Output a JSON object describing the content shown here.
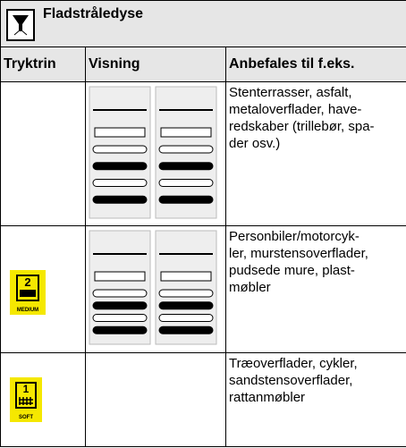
{
  "header": {
    "title": "Fladstråledyse"
  },
  "table": {
    "columns": [
      "Tryktrin",
      "Visning",
      "Anbefales til f.eks."
    ],
    "rows": [
      {
        "recommended": "Stenterrasser, asfalt,\nmetaloverflader, have-\nredskaber (trillebør, spa-\nder osv.)"
      },
      {
        "level": "2",
        "level_label": "MEDIUM",
        "recommended": "Personbiler/motorcyk-\nler, murstensoverflader,\npudsede mure, plast-\nmøbler"
      },
      {
        "level": "1",
        "level_label": "SOFT",
        "recommended": "Træoverflader, cykler,\nsandstensoverflader,\nrattanmøbler"
      }
    ]
  }
}
